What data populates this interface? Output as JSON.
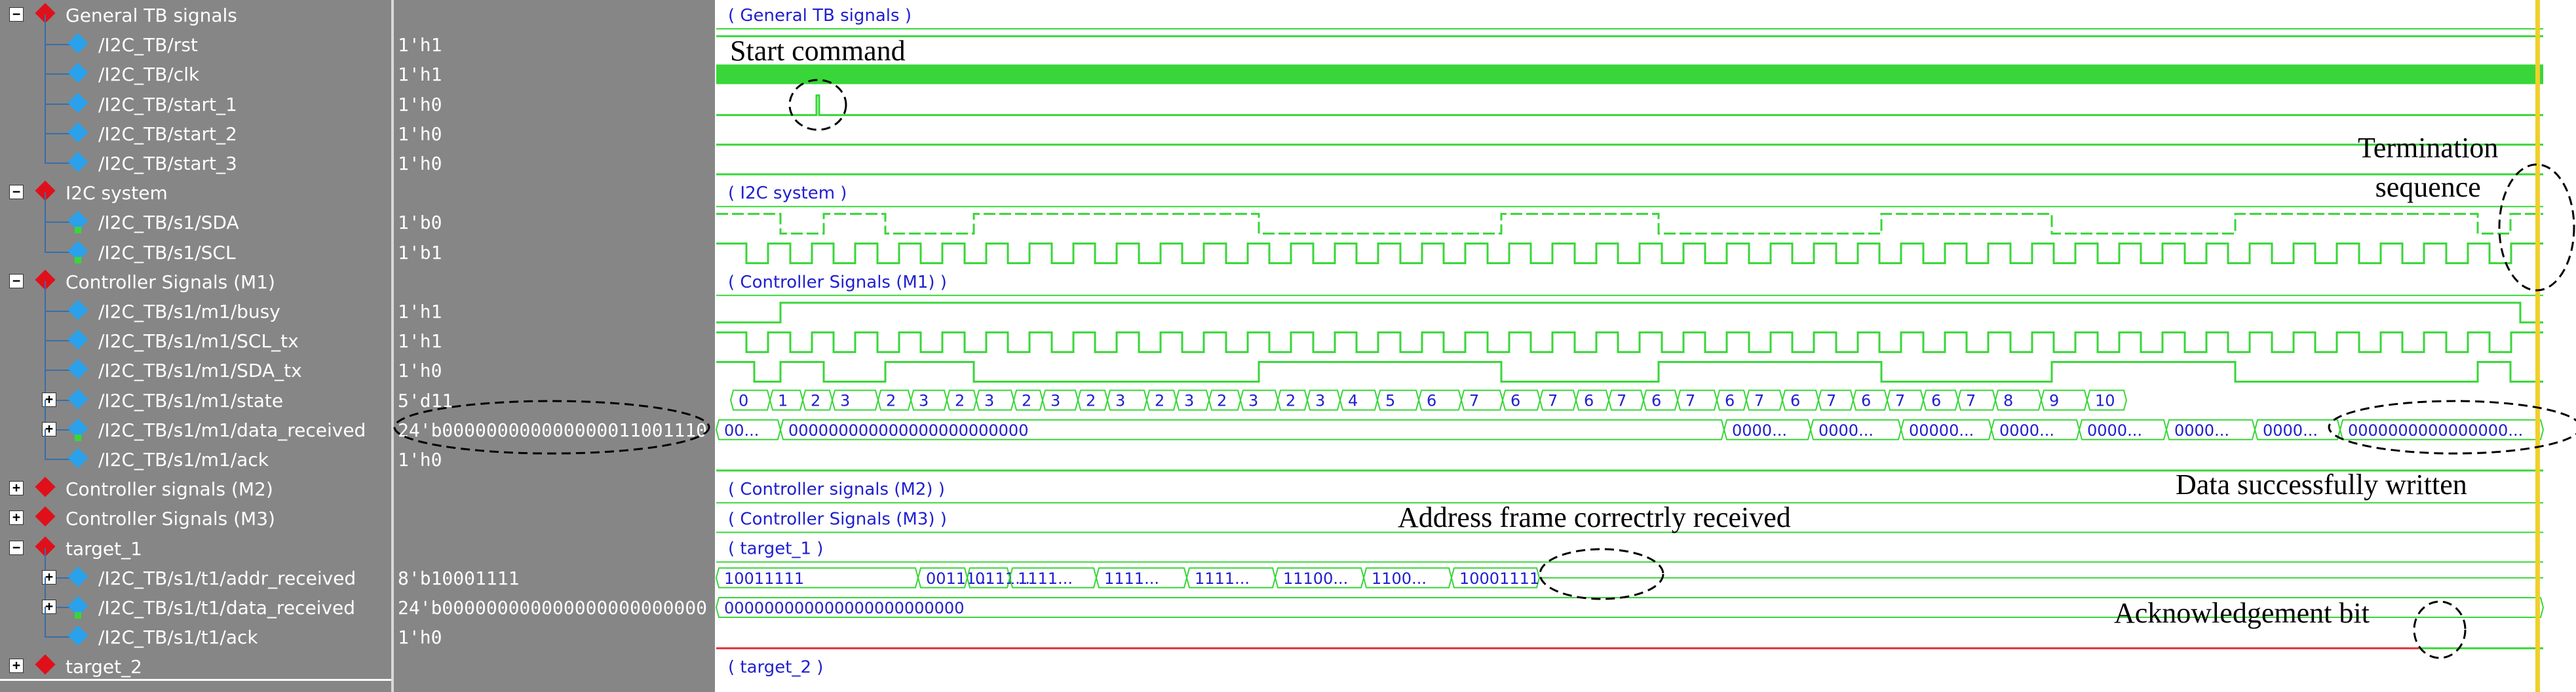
{
  "signal_tree": [
    {
      "name": "General TB signals",
      "value": "",
      "type": "group",
      "expanded": true
    },
    {
      "name": "/I2C_TB/rst",
      "value": "1'h1",
      "type": "signal"
    },
    {
      "name": "/I2C_TB/clk",
      "value": "1'h1",
      "type": "signal"
    },
    {
      "name": "/I2C_TB/start_1",
      "value": "1'h0",
      "type": "signal"
    },
    {
      "name": "/I2C_TB/start_2",
      "value": "1'h0",
      "type": "signal"
    },
    {
      "name": "/I2C_TB/start_3",
      "value": "1'h0",
      "type": "signal"
    },
    {
      "name": "I2C system",
      "value": "",
      "type": "group",
      "expanded": true
    },
    {
      "name": "/I2C_TB/s1/SDA",
      "value": "1'b0",
      "type": "signal",
      "dir": "inout"
    },
    {
      "name": "/I2C_TB/s1/SCL",
      "value": "1'b1",
      "type": "signal",
      "dir": "inout"
    },
    {
      "name": "Controller Signals (M1)",
      "value": "",
      "type": "group",
      "expanded": true
    },
    {
      "name": "/I2C_TB/s1/m1/busy",
      "value": "1'h1",
      "type": "signal"
    },
    {
      "name": "/I2C_TB/s1/m1/SCL_tx",
      "value": "1'h1",
      "type": "signal"
    },
    {
      "name": "/I2C_TB/s1/m1/SDA_tx",
      "value": "1'h0",
      "type": "signal"
    },
    {
      "name": "/I2C_TB/s1/m1/state",
      "value": "5'd11",
      "type": "bus"
    },
    {
      "name": "/I2C_TB/s1/m1/data_received",
      "value": "24'b000000000000000011001110",
      "type": "bus",
      "dir": "inout"
    },
    {
      "name": "/I2C_TB/s1/m1/ack",
      "value": "1'h0",
      "type": "signal"
    },
    {
      "name": "Controller signals (M2)",
      "value": "",
      "type": "group",
      "expanded": false
    },
    {
      "name": "Controller Signals (M3)",
      "value": "",
      "type": "group",
      "expanded": false
    },
    {
      "name": "target_1",
      "value": "",
      "type": "group",
      "expanded": true
    },
    {
      "name": "/I2C_TB/s1/t1/addr_received",
      "value": "8'b10001111",
      "type": "bus"
    },
    {
      "name": "/I2C_TB/s1/t1/data_received",
      "value": "24'b000000000000000000000000",
      "type": "bus",
      "dir": "inout"
    },
    {
      "name": "/I2C_TB/s1/t1/ack",
      "value": "1'h0",
      "type": "signal"
    },
    {
      "name": "target_2",
      "value": "",
      "type": "group",
      "expanded": false
    }
  ],
  "wave_group_labels": {
    "general": "( General TB signals )",
    "i2c": "( I2C system )",
    "m1": "( Controller Signals (M1) )",
    "m2": "( Controller signals (M2) )",
    "m3": "( Controller Signals (M3) )",
    "target_1": "( target_1 )",
    "target_2": "( target_2 )"
  },
  "state_values": [
    "0",
    "1",
    "2",
    "3",
    "2",
    "3",
    "2",
    "3",
    "2",
    "3",
    "2",
    "3",
    "2",
    "3",
    "2",
    "3",
    "2",
    "3",
    "4",
    "5",
    "6",
    "7",
    "6",
    "7",
    "6",
    "7",
    "6",
    "7",
    "6",
    "7",
    "6",
    "7",
    "6",
    "7",
    "6",
    "7",
    "8",
    "9",
    "10"
  ],
  "data_received_values": [
    "00...",
    "000000000000000000000000",
    "0000...",
    "0000...",
    "00000...",
    "0000...",
    "0000...",
    "0000...",
    "0000...",
    "0000000000000000..."
  ],
  "addr_received_values": [
    "10011111",
    "00111...",
    "0111...",
    "1111...",
    "1111...",
    "1111...",
    "11100...",
    "1100...",
    "10001111"
  ],
  "t1_data_received_value": "000000000000000000000000",
  "annotations": {
    "start_command": "Start command",
    "termination": "Termination\nsequence",
    "data_written": "Data successfully written",
    "address_frame": "Address frame correctrly received",
    "ack_bit": "Acknowledgement bit"
  },
  "colors": {
    "panel_bg": "#868686",
    "wave_green": "#39d639",
    "bus_text": "#2020d0",
    "ack_red": "#e03030",
    "cursor": "#f0d02c"
  }
}
